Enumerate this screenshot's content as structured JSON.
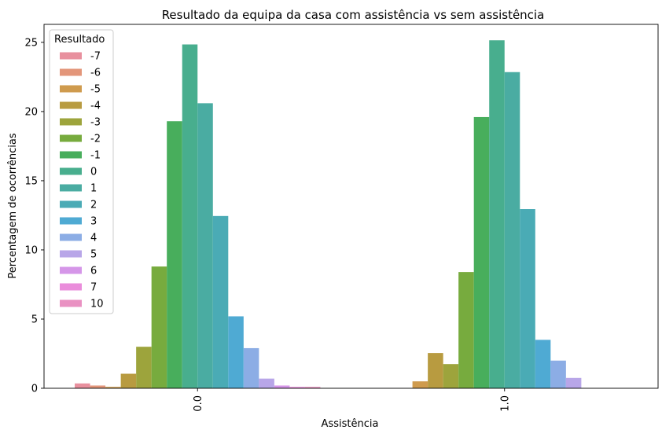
{
  "chart_data": {
    "type": "bar",
    "title": "Resultado da equipa da casa com assistência vs sem assistência",
    "xlabel": "Assistência",
    "ylabel": "Percentagem de ocorrências",
    "categories": [
      "0.0",
      "1.0"
    ],
    "yticks": [
      "0",
      "5",
      "10",
      "15",
      "20",
      "25"
    ],
    "ylim": [
      0,
      26.3
    ],
    "grid": false,
    "legend_title": "Resultado",
    "legend_position": "top-left",
    "series": [
      {
        "name": "-7",
        "color": "#e8909e",
        "values": [
          0.35,
          0
        ]
      },
      {
        "name": "-6",
        "color": "#e3967a",
        "values": [
          0.2,
          0
        ]
      },
      {
        "name": "-5",
        "color": "#cf9b4e",
        "values": [
          0.1,
          0.5
        ]
      },
      {
        "name": "-4",
        "color": "#b89b40",
        "values": [
          1.05,
          2.55
        ]
      },
      {
        "name": "-3",
        "color": "#9da43c",
        "values": [
          3.0,
          1.75
        ]
      },
      {
        "name": "-2",
        "color": "#77ab3e",
        "values": [
          8.8,
          8.4
        ]
      },
      {
        "name": "-1",
        "color": "#48ae5c",
        "values": [
          19.3,
          19.6
        ]
      },
      {
        "name": "0",
        "color": "#48ae8e",
        "values": [
          24.85,
          25.15
        ]
      },
      {
        "name": "1",
        "color": "#4aaca2",
        "values": [
          20.6,
          22.85
        ]
      },
      {
        "name": "2",
        "color": "#4aabb5",
        "values": [
          12.45,
          12.95
        ]
      },
      {
        "name": "3",
        "color": "#4faad3",
        "values": [
          5.2,
          3.5
        ]
      },
      {
        "name": "4",
        "color": "#8cade5",
        "values": [
          2.9,
          2.0
        ]
      },
      {
        "name": "5",
        "color": "#b8a6e8",
        "values": [
          0.7,
          0.75
        ]
      },
      {
        "name": "6",
        "color": "#d596e8",
        "values": [
          0.2,
          0
        ]
      },
      {
        "name": "7",
        "color": "#ea8ddb",
        "values": [
          0.1,
          0
        ]
      },
      {
        "name": "10",
        "color": "#e991c2",
        "values": [
          0.1,
          0
        ]
      }
    ]
  }
}
